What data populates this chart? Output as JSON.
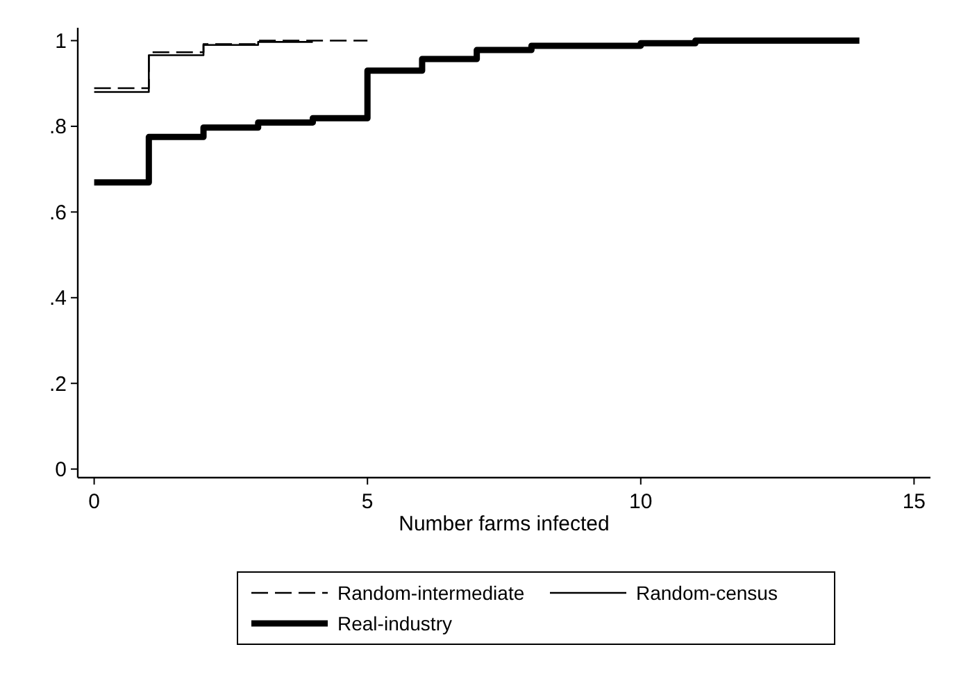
{
  "chart_data": {
    "type": "step",
    "xlabel": "Number farms infected",
    "xlim": [
      -0.3,
      15.3
    ],
    "ylim": [
      -0.02,
      1.03
    ],
    "xticks": [
      0,
      5,
      10,
      15
    ],
    "yticks": [
      0,
      {
        "value": 0.2,
        "label": ".2"
      },
      {
        "value": 0.4,
        "label": ".4"
      },
      {
        "value": 0.6,
        "label": ".6"
      },
      {
        "value": 0.8,
        "label": ".8"
      },
      1
    ],
    "grid": false,
    "legend": "bottom",
    "series": [
      {
        "name": "Random-intermediate",
        "color": "#000000",
        "line_style": "dashed",
        "x": [
          0,
          1,
          2,
          3,
          5
        ],
        "values": [
          0.889,
          0.973,
          0.992,
          1.0,
          1.0
        ]
      },
      {
        "name": "Random-census",
        "color": "#000000",
        "line_style": "solid",
        "x": [
          0,
          1,
          2,
          3,
          4
        ],
        "values": [
          0.88,
          0.966,
          0.99,
          0.997,
          0.997
        ]
      },
      {
        "name": "Real-industry",
        "color": "#000000",
        "line_style": "solid",
        "x": [
          0,
          1,
          2,
          3,
          4,
          5,
          6,
          7,
          8,
          10,
          11,
          14
        ],
        "values": [
          0.669,
          0.775,
          0.797,
          0.809,
          0.819,
          0.93,
          0.957,
          0.978,
          0.988,
          0.994,
          1.0,
          1.0
        ]
      }
    ]
  }
}
